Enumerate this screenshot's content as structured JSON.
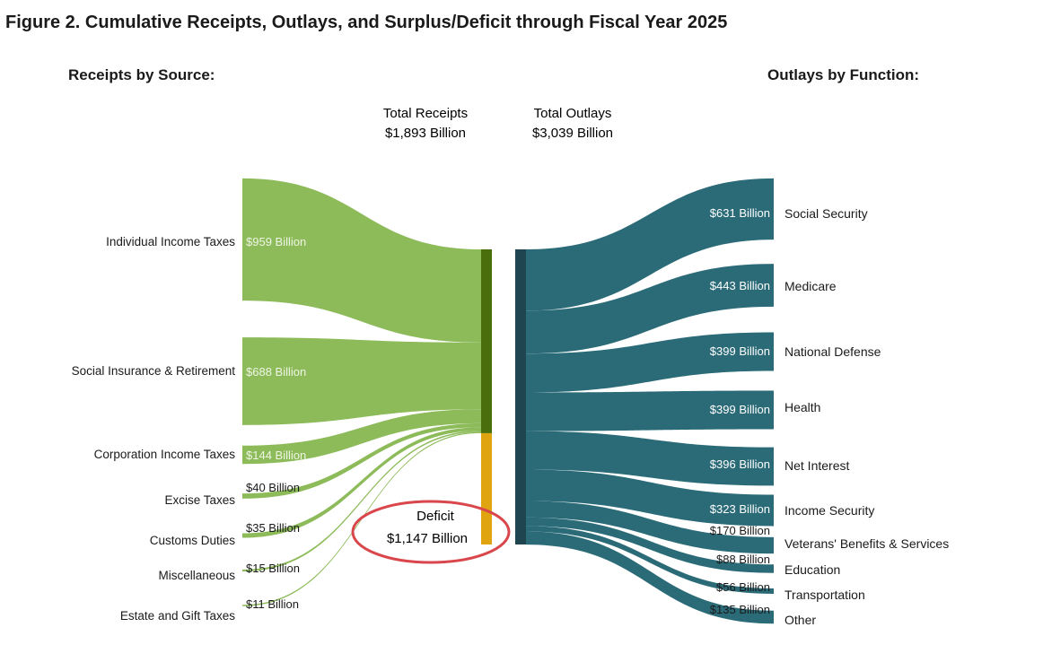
{
  "title": "Figure 2. Cumulative Receipts, Outlays, and Surplus/Deficit through Fiscal Year 2025",
  "receipts_heading": "Receipts by Source:",
  "outlays_heading": "Outlays by Function:",
  "colors": {
    "receipts": "#8dbb5a",
    "receipts_bar": "#4a6e0c",
    "deficit_bar": "#e0a410",
    "outlays": "#2b6b78",
    "outlays_bar": "#1f4650",
    "deficit_circle": "#d9474c"
  },
  "chart_data": {
    "type": "sankey",
    "units": "Billion USD",
    "total_receipts": {
      "label_line1": "Total Receipts",
      "label_line2": "$1,893 Billion",
      "value": 1893
    },
    "total_outlays": {
      "label_line1": "Total Outlays",
      "label_line2": "$3,039 Billion",
      "value": 3039
    },
    "deficit": {
      "label_line1": "Deficit",
      "label_line2": "$1,147 Billion",
      "value": 1147
    },
    "receipts": [
      {
        "name": "Individual Income Taxes",
        "value": 959,
        "value_label": "$959 Billion"
      },
      {
        "name": "Social Insurance & Retirement",
        "value": 688,
        "value_label": "$688 Billion"
      },
      {
        "name": "Corporation Income Taxes",
        "value": 144,
        "value_label": "$144 Billion"
      },
      {
        "name": "Excise Taxes",
        "value": 40,
        "value_label": "$40 Billion"
      },
      {
        "name": "Customs Duties",
        "value": 35,
        "value_label": "$35 Billion"
      },
      {
        "name": "Miscellaneous",
        "value": 15,
        "value_label": "$15 Billion"
      },
      {
        "name": "Estate and Gift Taxes",
        "value": 11,
        "value_label": "$11 Billion"
      }
    ],
    "outlays": [
      {
        "name": "Social Security",
        "value": 631,
        "value_label": "$631 Billion"
      },
      {
        "name": "Medicare",
        "value": 443,
        "value_label": "$443 Billion"
      },
      {
        "name": "National Defense",
        "value": 399,
        "value_label": "$399 Billion"
      },
      {
        "name": "Health",
        "value": 399,
        "value_label": "$399 Billion"
      },
      {
        "name": "Net Interest",
        "value": 396,
        "value_label": "$396 Billion"
      },
      {
        "name": "Income Security",
        "value": 323,
        "value_label": "$323 Billion"
      },
      {
        "name": "Veterans' Benefits & Services",
        "value": 170,
        "value_label": "$170 Billion"
      },
      {
        "name": "Education",
        "value": 88,
        "value_label": "$88 Billion"
      },
      {
        "name": "Transportation",
        "value": 56,
        "value_label": "$56 Billion"
      },
      {
        "name": "Other",
        "value": 135,
        "value_label": "$135 Billion"
      }
    ]
  }
}
